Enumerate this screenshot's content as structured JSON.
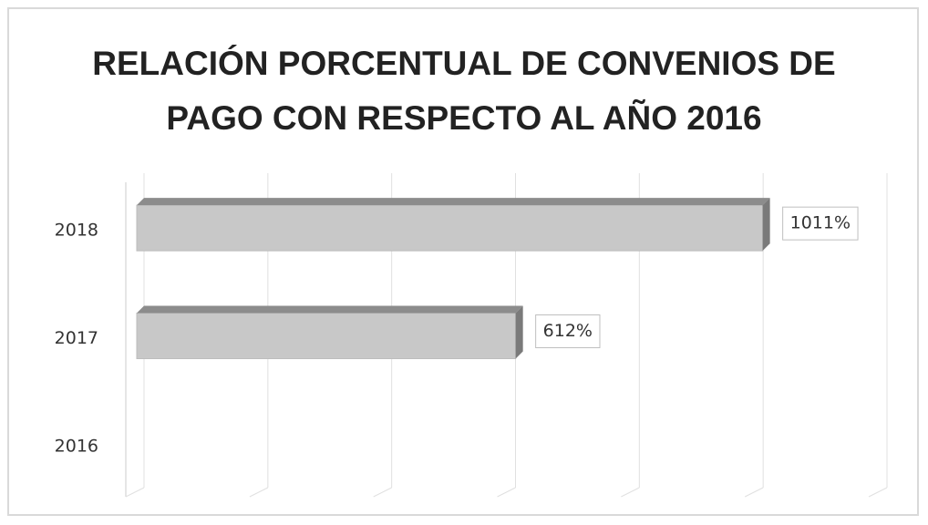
{
  "chart_data": {
    "type": "bar",
    "orientation": "horizontal",
    "title": "RELACIÓN PORCENTUAL DE CONVENIOS DE PAGO CON RESPECTO AL AÑO 2016",
    "categories": [
      "2016",
      "2017",
      "2018"
    ],
    "values": [
      0,
      612,
      1011
    ],
    "value_labels": [
      null,
      "612%",
      "1011%"
    ],
    "color": "#c8c8c8",
    "xlim": [
      0,
      1200
    ],
    "xticks": [
      0,
      200,
      400,
      600,
      800,
      1000,
      1200
    ],
    "grid": true
  }
}
